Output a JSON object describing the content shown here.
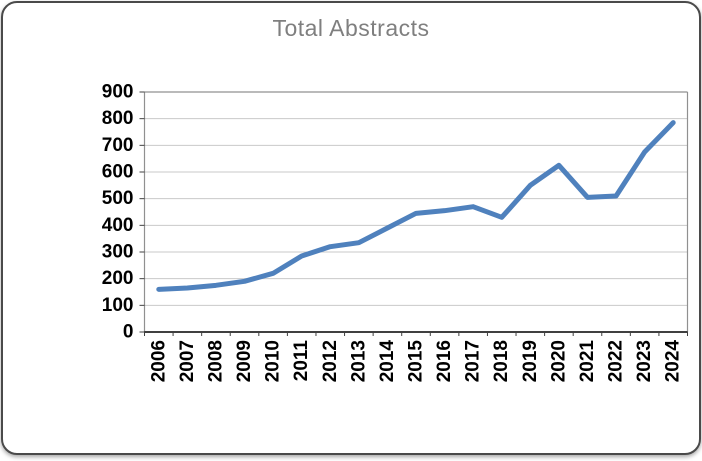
{
  "card": {
    "title_color": "#7f7f7f"
  },
  "chart_data": {
    "type": "line",
    "title": "Total Abstracts",
    "categories": [
      "2006",
      "2007",
      "2008",
      "2009",
      "2010",
      "2011",
      "2012",
      "2013",
      "2014",
      "2015",
      "2016",
      "2017",
      "2018",
      "2019",
      "2020",
      "2021",
      "2022",
      "2023",
      "2024"
    ],
    "series": [
      {
        "name": "Total Abstracts",
        "values": [
          160,
          165,
          175,
          190,
          220,
          285,
          320,
          335,
          390,
          445,
          455,
          470,
          430,
          550,
          625,
          505,
          510,
          675,
          785
        ]
      }
    ],
    "xlabel": "",
    "ylabel": "",
    "ylim": [
      0,
      900
    ],
    "ytick_interval": 100,
    "grid": true,
    "legend": "none",
    "x_label_rotation": -90,
    "line_color": "#4F81BD",
    "gridline_color": "#c9c9c9",
    "plot_border_color": "#909090",
    "axis_color": "#000000",
    "title_color": "#7f7f7f"
  }
}
